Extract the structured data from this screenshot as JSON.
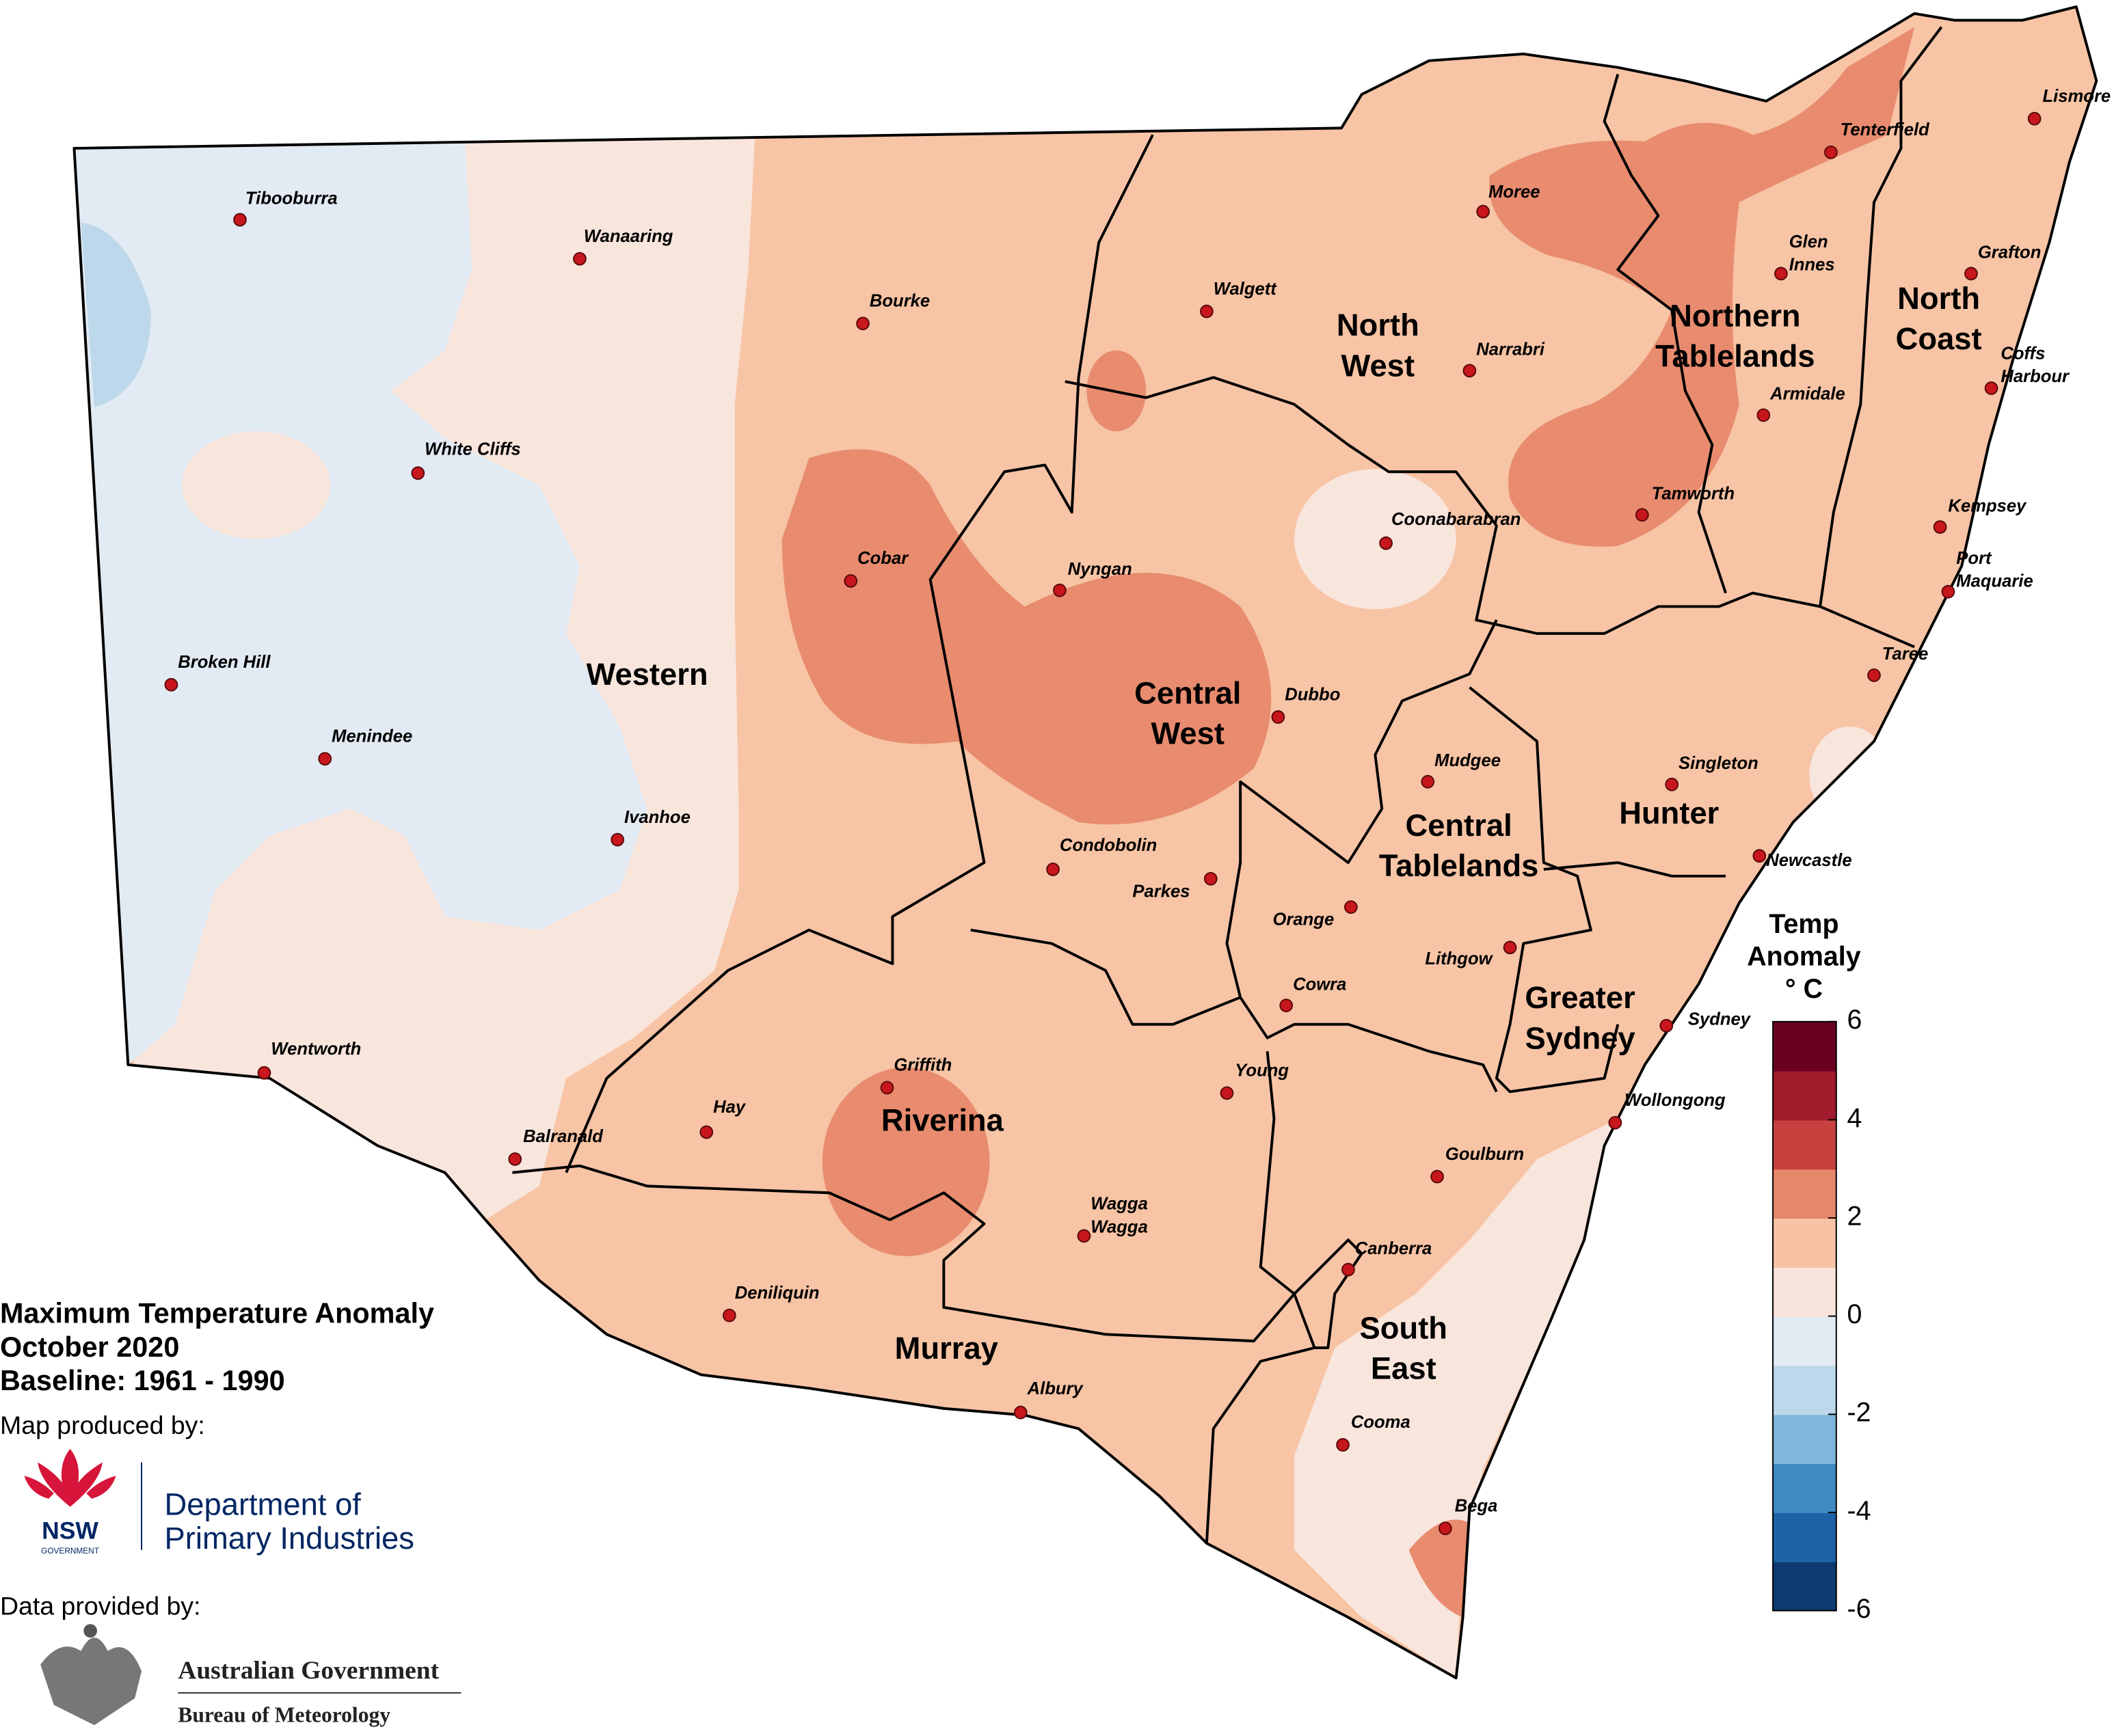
{
  "title": [
    "Maximum Temperature Anomaly",
    "October 2020",
    "Baseline: 1961 - 1990"
  ],
  "credits": {
    "produced_by": "Map produced by:",
    "nsw_logo": [
      "NSW",
      "GOVERNMENT"
    ],
    "department": [
      "Department of",
      "Primary Industries"
    ],
    "data_by": "Data provided by:",
    "bom": [
      "Australian Government",
      "Bureau of Meteorology"
    ]
  },
  "regions": [
    [
      "Western"
    ],
    [
      "North",
      "West"
    ],
    [
      "Northern",
      "Tablelands"
    ],
    [
      "North",
      "Coast"
    ],
    [
      "Central",
      "West"
    ],
    [
      "Central",
      "Tablelands"
    ],
    [
      "Hunter"
    ],
    [
      "Greater",
      "Sydney"
    ],
    [
      "Riverina"
    ],
    [
      "Murray"
    ],
    [
      "South",
      "East"
    ]
  ],
  "towns": [
    [
      "Tibooburra"
    ],
    [
      "Wanaaring"
    ],
    [
      "Bourke"
    ],
    [
      "Walgett"
    ],
    [
      "Moree"
    ],
    [
      "Tenterfield"
    ],
    [
      "Lismore"
    ],
    [
      "Glen",
      "Innes"
    ],
    [
      "Grafton"
    ],
    [
      "White Cliffs"
    ],
    [
      "Narrabri"
    ],
    [
      "Coffs",
      "Harbour"
    ],
    [
      "Armidale"
    ],
    [
      "Coonabarabran"
    ],
    [
      "Tamworth"
    ],
    [
      "Kempsey"
    ],
    [
      "Port",
      "Maquarie"
    ],
    [
      "Cobar"
    ],
    [
      "Nyngan"
    ],
    [
      "Broken Hill"
    ],
    [
      "Taree"
    ],
    [
      "Dubbo"
    ],
    [
      "Menindee"
    ],
    [
      "Mudgee"
    ],
    [
      "Singleton"
    ],
    [
      "Ivanhoe"
    ],
    [
      "Condobolin"
    ],
    [
      "Newcastle"
    ],
    [
      "Parkes"
    ],
    [
      "Orange"
    ],
    [
      "Lithgow"
    ],
    [
      "Cowra"
    ],
    [
      "Sydney"
    ],
    [
      "Wentworth"
    ],
    [
      "Young"
    ],
    [
      "Griffith"
    ],
    [
      "Wollongong"
    ],
    [
      "Hay"
    ],
    [
      "Balranald"
    ],
    [
      "Goulburn"
    ],
    [
      "Wagga",
      "Wagga"
    ],
    [
      "Canberra"
    ],
    [
      "Deniliquin"
    ],
    [
      "Albury"
    ],
    [
      "Cooma"
    ],
    [
      "Bega"
    ]
  ],
  "legend": {
    "title": [
      "Temp",
      "Anomaly",
      "° C"
    ],
    "range": [
      -6,
      6
    ],
    "ticks": [
      -6,
      -4,
      -2,
      0,
      2,
      4,
      6
    ],
    "colors": [
      "#0d3a70",
      "#1e63a8",
      "#3f8bc2",
      "#7fb8da",
      "#bcd8ea",
      "#e2eaf3",
      "#f8e4da",
      "#f8c3a4",
      "#e6866a",
      "#c7413e",
      "#a01b2c",
      "#6a0020"
    ]
  }
}
